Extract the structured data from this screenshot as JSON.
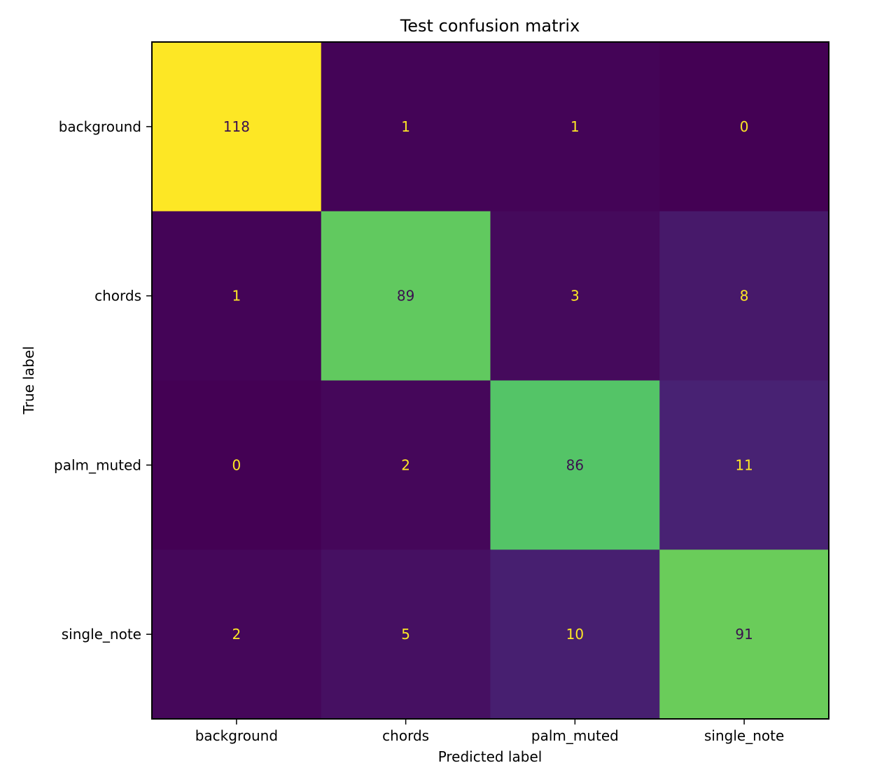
{
  "chart_data": {
    "type": "heatmap",
    "title": "Test confusion matrix",
    "xlabel": "Predicted label",
    "ylabel": "True label",
    "x_categories": [
      "background",
      "chords",
      "palm_muted",
      "single_note"
    ],
    "y_categories": [
      "background",
      "chords",
      "palm_muted",
      "single_note"
    ],
    "values": [
      [
        118,
        1,
        1,
        0
      ],
      [
        1,
        89,
        3,
        8
      ],
      [
        0,
        2,
        86,
        11
      ],
      [
        2,
        5,
        10,
        91
      ]
    ],
    "value_range": [
      0,
      118
    ],
    "colormap": "viridis",
    "colorbar": false,
    "grid": false
  }
}
